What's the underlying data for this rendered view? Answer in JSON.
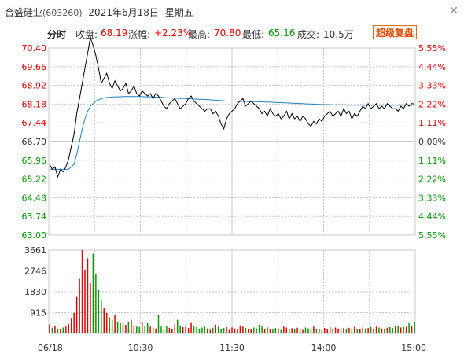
{
  "window": {
    "stock_name": "合盛硅业",
    "stock_code": "(603260)",
    "date": "2021年6月18日",
    "weekday": "星期五",
    "close_icon": "close-icon"
  },
  "info": {
    "tab_label": "分时",
    "close_label": "收盘:",
    "close_value": "68.19",
    "change_label": "涨幅:",
    "change_value": "+2.23%",
    "high_label": "最高:",
    "high_value": "70.80",
    "low_label": "最低:",
    "low_value": "65.16",
    "volume_label": "成交:",
    "volume_value": "10.5万",
    "fuqian_button": "超级复盘"
  },
  "colors": {
    "up": "#e00000",
    "down": "#009900",
    "price_line": "#000000",
    "avg_line": "#1a7fc1",
    "volume_bar": "#e00000",
    "grid": "#c8c8c8"
  },
  "chart_data": {
    "type": "line",
    "title": "",
    "xlabel": "",
    "ylabel": "",
    "x_ticks": [
      "06/18",
      "10:30",
      "11:30",
      "14:00",
      "15:00"
    ],
    "price_ticks": [
      "70.40",
      "69.66",
      "68.92",
      "68.18",
      "67.44",
      "66.70",
      "65.96",
      "65.22",
      "64.48",
      "63.74",
      "63.00"
    ],
    "pct_ticks": [
      "5.55%",
      "4.44%",
      "3.33%",
      "2.22%",
      "1.11%",
      "0.00%",
      "1.11%",
      "2.22%",
      "3.33%",
      "4.44%",
      "5.55%"
    ],
    "prev_close": 66.7,
    "ylim": [
      63.0,
      70.4
    ],
    "volume_ticks": [
      "3661",
      "2746",
      "1830",
      "915"
    ],
    "volume_ylim": [
      0,
      3661
    ],
    "series": [
      {
        "name": "price",
        "values": [
          65.8,
          65.6,
          65.7,
          65.3,
          65.6,
          65.5,
          65.7,
          66.0,
          66.5,
          67.0,
          67.8,
          68.4,
          69.0,
          69.6,
          70.2,
          70.8,
          70.5,
          70.1,
          69.6,
          69.0,
          69.2,
          69.4,
          69.0,
          68.8,
          69.1,
          68.9,
          68.7,
          68.8,
          69.0,
          68.6,
          68.7,
          68.9,
          68.6,
          68.5,
          68.7,
          68.6,
          68.5,
          68.6,
          68.4,
          68.6,
          68.5,
          68.3,
          68.1,
          68.0,
          68.2,
          68.3,
          68.4,
          68.2,
          68.0,
          68.1,
          68.2,
          68.4,
          68.5,
          68.3,
          68.2,
          68.1,
          68.0,
          67.9,
          68.0,
          68.0,
          67.8,
          67.9,
          67.7,
          67.4,
          67.2,
          67.6,
          67.8,
          67.9,
          68.0,
          68.2,
          68.3,
          68.4,
          68.1,
          68.2,
          68.3,
          68.2,
          68.1,
          68.0,
          67.8,
          67.9,
          67.7,
          68.0,
          67.8,
          67.7,
          67.8,
          67.6,
          67.7,
          67.9,
          67.6,
          67.8,
          67.6,
          67.7,
          67.5,
          67.7,
          67.6,
          67.4,
          67.3,
          67.5,
          67.4,
          67.6,
          67.5,
          67.7,
          67.8,
          67.9,
          67.7,
          67.8,
          67.9,
          67.7,
          68.0,
          67.8,
          67.9,
          67.6,
          67.8,
          67.7,
          67.9,
          68.1,
          68.0,
          68.2,
          68.0,
          68.1,
          68.2,
          68.0,
          68.1,
          68.0,
          68.2,
          68.1,
          68.0,
          68.0,
          67.9,
          68.1,
          68.0,
          68.2,
          68.1,
          68.2,
          68.19
        ]
      },
      {
        "name": "avg",
        "values": [
          65.6,
          65.6,
          65.6,
          65.6,
          65.6,
          65.6,
          65.6,
          65.6,
          65.7,
          65.8,
          66.2,
          66.7,
          67.2,
          67.6,
          67.9,
          68.1,
          68.2,
          68.3,
          68.35,
          68.4,
          68.42,
          68.44,
          68.45,
          68.46,
          68.47,
          68.47,
          68.47,
          68.48,
          68.48,
          68.48,
          68.48,
          68.48,
          68.48,
          68.48,
          68.48,
          68.47,
          68.47,
          68.47,
          68.46,
          68.46,
          68.45,
          68.45,
          68.44,
          68.43,
          68.43,
          68.42,
          68.42,
          68.41,
          68.4,
          68.4,
          68.4,
          68.39,
          68.39,
          68.38,
          68.38,
          68.37,
          68.37,
          68.36,
          68.36,
          68.35,
          68.34,
          68.34,
          68.33,
          68.32,
          68.31,
          68.3,
          68.3,
          68.3,
          68.3,
          68.29,
          68.29,
          68.29,
          68.29,
          68.28,
          68.28,
          68.28,
          68.28,
          68.27,
          68.27,
          68.26,
          68.26,
          68.26,
          68.25,
          68.25,
          68.24,
          68.24,
          68.23,
          68.23,
          68.22,
          68.22,
          68.21,
          68.21,
          68.2,
          68.2,
          68.19,
          68.19,
          68.18,
          68.18,
          68.17,
          68.17,
          68.16,
          68.16,
          68.16,
          68.16,
          68.15,
          68.15,
          68.15,
          68.15,
          68.15,
          68.14,
          68.14,
          68.14,
          68.14,
          68.14,
          68.14,
          68.14,
          68.14,
          68.14,
          68.14,
          68.14,
          68.14,
          68.14,
          68.14,
          68.14,
          68.14,
          68.14,
          68.14,
          68.14,
          68.14,
          68.14,
          68.14,
          68.14,
          68.14,
          68.14,
          68.14
        ]
      },
      {
        "name": "volume",
        "values": [
          400,
          250,
          320,
          200,
          180,
          260,
          300,
          420,
          650,
          900,
          1600,
          2400,
          3661,
          2800,
          3300,
          2200,
          3500,
          2600,
          1900,
          1500,
          1100,
          900,
          700,
          600,
          820,
          500,
          450,
          420,
          380,
          500,
          600,
          350,
          300,
          280,
          520,
          330,
          450,
          300,
          260,
          220,
          800,
          300,
          200,
          350,
          250,
          180,
          420,
          600,
          350,
          280,
          300,
          240,
          460,
          350,
          280,
          200,
          260,
          300,
          220,
          160,
          250,
          380,
          300,
          200,
          240,
          280,
          160,
          260,
          220,
          190,
          350,
          300,
          240,
          200,
          180,
          260,
          220,
          380,
          300,
          210,
          260,
          180,
          200,
          240,
          220,
          160,
          300,
          260,
          200,
          230,
          180,
          250,
          200,
          160,
          260,
          220,
          180,
          300,
          200,
          180,
          150,
          240,
          200,
          280,
          220,
          260,
          180,
          200,
          240,
          190,
          250,
          220,
          300,
          200,
          180,
          260,
          220,
          240,
          280,
          200,
          300,
          260,
          220,
          180,
          250,
          280,
          240,
          300,
          350,
          260,
          280,
          300,
          450,
          320,
          500
        ]
      }
    ]
  }
}
